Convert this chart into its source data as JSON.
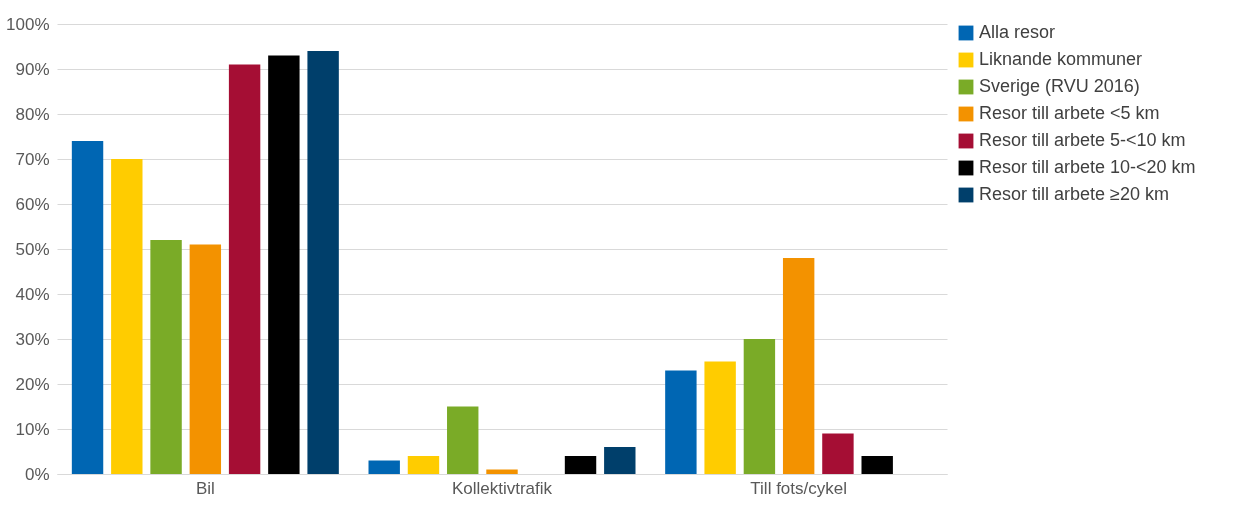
{
  "chart_data": {
    "type": "bar",
    "categories": [
      "Bil",
      "Kollektivtrafik",
      "Till fots/cykel"
    ],
    "series": [
      {
        "name": "Alla resor",
        "color": "#0066b3",
        "values": [
          74,
          3,
          23
        ]
      },
      {
        "name": "Liknande kommuner",
        "color": "#ffcc00",
        "values": [
          70,
          4,
          25
        ]
      },
      {
        "name": "Sverige (RVU 2016)",
        "color": "#7aab27",
        "values": [
          52,
          15,
          30
        ]
      },
      {
        "name": "Resor till arbete <5 km",
        "color": "#f39200",
        "values": [
          51,
          1,
          48
        ]
      },
      {
        "name": "Resor till arbete 5-<10 km",
        "color": "#a50e34",
        "values": [
          91,
          null,
          9
        ]
      },
      {
        "name": "Resor till arbete 10-<20 km",
        "color": "#000000",
        "values": [
          93,
          4,
          4
        ]
      },
      {
        "name": "Resor till arbete ≥20 km",
        "color": "#003f6b",
        "values": [
          94,
          6,
          null
        ]
      }
    ],
    "ylim": [
      0,
      100
    ],
    "yticks": [
      {
        "value": 0,
        "label": "0%"
      },
      {
        "value": 10,
        "label": "10%"
      },
      {
        "value": 20,
        "label": "20%"
      },
      {
        "value": 30,
        "label": "30%"
      },
      {
        "value": 40,
        "label": "40%"
      },
      {
        "value": 50,
        "label": "50%"
      },
      {
        "value": 60,
        "label": "60%"
      },
      {
        "value": 70,
        "label": "70%"
      },
      {
        "value": 80,
        "label": "80%"
      },
      {
        "value": 90,
        "label": "90%"
      },
      {
        "value": 100,
        "label": "100%"
      }
    ],
    "grid": "y",
    "legend": "right"
  }
}
